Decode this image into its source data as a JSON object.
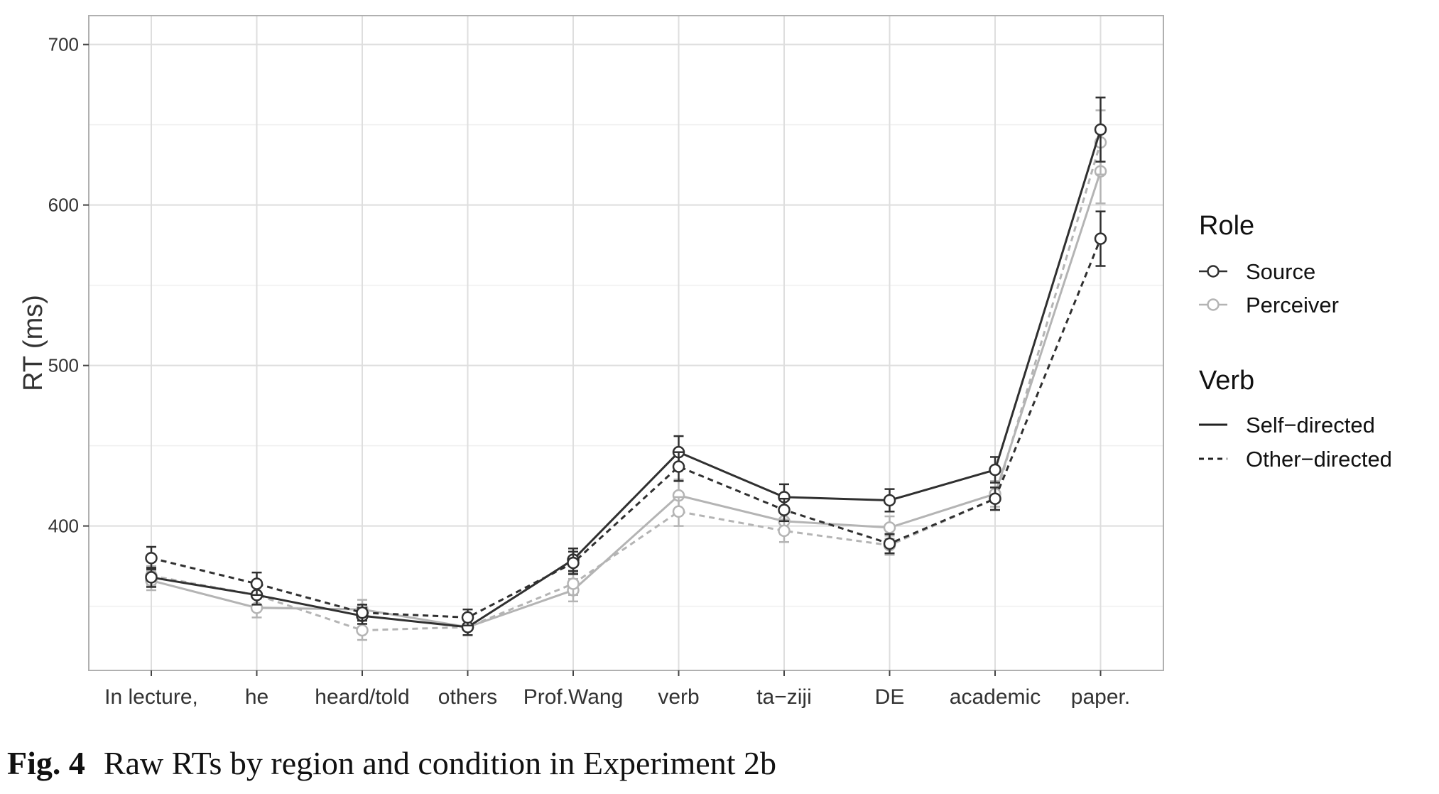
{
  "caption": {
    "label": "Fig. 4",
    "text": "Raw RTs by region and condition in Experiment 2b"
  },
  "colors": {
    "source": "#303030",
    "perceiver": "#b4b4b4",
    "grid_major": "#dedede",
    "grid_minor": "#efefef",
    "panel_border": "#b0b0b0"
  },
  "chart_data": {
    "type": "line",
    "title": "",
    "xlabel": "",
    "ylabel": "RT (ms)",
    "ylim": [
      310,
      718
    ],
    "yticks": [
      400,
      500,
      600,
      700
    ],
    "grid": true,
    "legend_position": "right",
    "categories": [
      "In lecture,",
      "he",
      "heard/told",
      "others",
      "Prof.Wang",
      "verb",
      "ta−ziji",
      "DE",
      "academic",
      "paper."
    ],
    "legend": {
      "role_title": "Role",
      "role_entries": [
        "Source",
        "Perceiver"
      ],
      "verb_title": "Verb",
      "verb_entries": [
        "Self−directed",
        "Other−directed"
      ]
    },
    "series": [
      {
        "name": "Source / Self−directed",
        "role": "Source",
        "verb": "Self−directed",
        "values": [
          368,
          357,
          344,
          337,
          379,
          446,
          418,
          416,
          435,
          647
        ],
        "error": [
          6,
          6,
          5,
          5,
          7,
          10,
          8,
          7,
          8,
          20
        ]
      },
      {
        "name": "Source / Other−directed",
        "role": "Source",
        "verb": "Other−directed",
        "values": [
          380,
          364,
          346,
          343,
          377,
          437,
          410,
          389,
          417,
          579
        ],
        "error": [
          7,
          7,
          5,
          5,
          7,
          9,
          7,
          6,
          7,
          17
        ]
      },
      {
        "name": "Perceiver / Self−directed",
        "role": "Perceiver",
        "verb": "Self−directed",
        "values": [
          366,
          349,
          348,
          337,
          360,
          419,
          403,
          399,
          420,
          621
        ],
        "error": [
          6,
          6,
          6,
          5,
          7,
          10,
          8,
          7,
          8,
          20
        ]
      },
      {
        "name": "Perceiver / Other−directed",
        "role": "Perceiver",
        "verb": "Other−directed",
        "values": [
          369,
          357,
          335,
          337,
          364,
          409,
          397,
          388,
          417,
          639
        ],
        "error": [
          6,
          6,
          6,
          5,
          7,
          9,
          7,
          6,
          7,
          20
        ]
      }
    ]
  }
}
